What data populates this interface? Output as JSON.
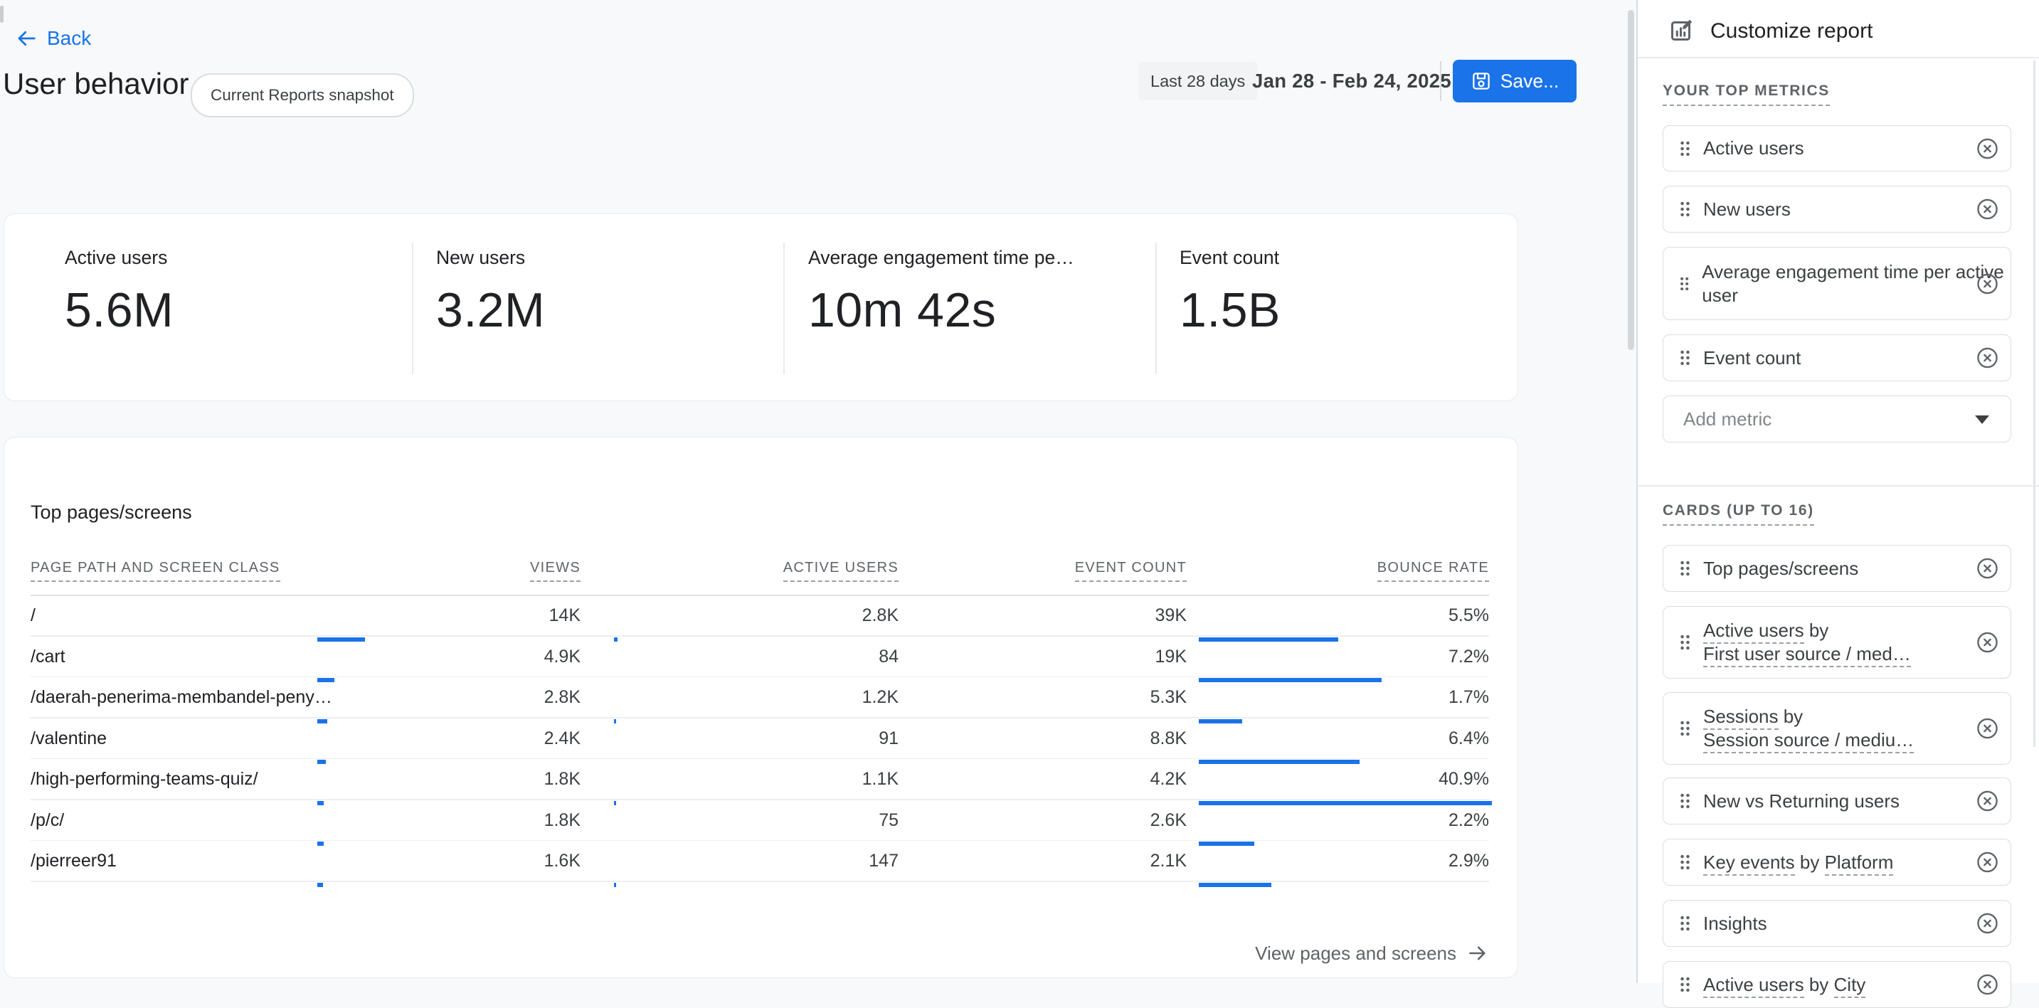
{
  "colors": {
    "accent": "#1a73e8",
    "text_dark": "#202124",
    "text_mid": "#3c4043",
    "text_gray": "#5f6368",
    "bar": "#1a73e8"
  },
  "header": {
    "back_label": "Back",
    "title": "User behavior",
    "chip": "Current Reports snapshot",
    "range_label": "Last 28 days",
    "date_range": "Jan 28 - Feb 24, 2025",
    "save_label": "Save..."
  },
  "summary": {
    "metrics": [
      {
        "label": "Active users",
        "value": "5.6M"
      },
      {
        "label": "New users",
        "value": "3.2M"
      },
      {
        "label": "Average engagement time pe…",
        "value": "10m 42s"
      },
      {
        "label": "Event count",
        "value": "1.5B"
      }
    ]
  },
  "table": {
    "title": "Top pages/screens",
    "columns": {
      "path": "PAGE PATH AND SCREEN CLASS",
      "views": "VIEWS",
      "active": "ACTIVE USERS",
      "event": "EVENT COUNT",
      "bounce": "BOUNCE RATE"
    },
    "rows": [
      {
        "path": "/",
        "views": "14K",
        "active": "2.8K",
        "event": "39K",
        "bounce": "5.5%",
        "bars": {
          "views": 67,
          "active": 5,
          "event": 0,
          "bounce": 196
        }
      },
      {
        "path": "/cart",
        "views": "4.9K",
        "active": "84",
        "event": "19K",
        "bounce": "7.2%",
        "bars": {
          "views": 24,
          "active": 0,
          "event": 0,
          "bounce": 257
        }
      },
      {
        "path": "/daerah-penerima-membandel-peny…",
        "views": "2.8K",
        "active": "1.2K",
        "event": "5.3K",
        "bounce": "1.7%",
        "bars": {
          "views": 14,
          "active": 3,
          "event": 0,
          "bounce": 61
        }
      },
      {
        "path": "/valentine",
        "views": "2.4K",
        "active": "91",
        "event": "8.8K",
        "bounce": "6.4%",
        "bars": {
          "views": 12,
          "active": 0,
          "event": 0,
          "bounce": 226
        }
      },
      {
        "path": "/high-performing-teams-quiz/",
        "views": "1.8K",
        "active": "1.1K",
        "event": "4.2K",
        "bounce": "40.9%",
        "bars": {
          "views": 9,
          "active": 3,
          "event": 0,
          "bounce": 412
        }
      },
      {
        "path": "/p/c/",
        "views": "1.8K",
        "active": "75",
        "event": "2.6K",
        "bounce": "2.2%",
        "bars": {
          "views": 9,
          "active": 0,
          "event": 0,
          "bounce": 78
        }
      },
      {
        "path": "/pierreer91",
        "views": "1.6K",
        "active": "147",
        "event": "2.1K",
        "bounce": "2.9%",
        "bars": {
          "views": 8,
          "active": 3,
          "event": 0,
          "bounce": 102
        }
      }
    ],
    "footer_link": "View pages and screens"
  },
  "sidebar": {
    "title": "Customize report",
    "metrics_section": "YOUR TOP METRICS",
    "cards_section": "CARDS (UP TO 16)",
    "add_metric_placeholder": "Add metric",
    "metrics": [
      {
        "lines": [
          [
            {
              "t": "Active users",
              "u": false
            }
          ]
        ]
      },
      {
        "lines": [
          [
            {
              "t": "New users",
              "u": false
            }
          ]
        ]
      },
      {
        "lines": [
          [
            {
              "t": "Average engagement time per active user",
              "u": false
            }
          ]
        ]
      },
      {
        "lines": [
          [
            {
              "t": "Event count",
              "u": false
            }
          ]
        ]
      }
    ],
    "cards": [
      {
        "lines": [
          [
            {
              "t": "Top pages/screens",
              "u": false
            }
          ]
        ]
      },
      {
        "lines": [
          [
            {
              "t": "Active users",
              "u": true
            },
            {
              "t": " by",
              "u": false
            }
          ],
          [
            {
              "t": "First user source / med…",
              "u": true
            }
          ]
        ]
      },
      {
        "lines": [
          [
            {
              "t": "Sessions",
              "u": true
            },
            {
              "t": " by",
              "u": false
            }
          ],
          [
            {
              "t": "Session source / mediu…",
              "u": true
            }
          ]
        ]
      },
      {
        "lines": [
          [
            {
              "t": "New vs Returning users",
              "u": false
            }
          ]
        ]
      },
      {
        "lines": [
          [
            {
              "t": "Key events",
              "u": true
            },
            {
              "t": " by ",
              "u": false
            },
            {
              "t": "Platform",
              "u": true
            }
          ]
        ]
      },
      {
        "lines": [
          [
            {
              "t": "Insights",
              "u": false
            }
          ]
        ]
      },
      {
        "lines": [
          [
            {
              "t": "Active users",
              "u": true
            },
            {
              "t": " by ",
              "u": false
            },
            {
              "t": "City",
              "u": true
            }
          ]
        ]
      }
    ]
  }
}
